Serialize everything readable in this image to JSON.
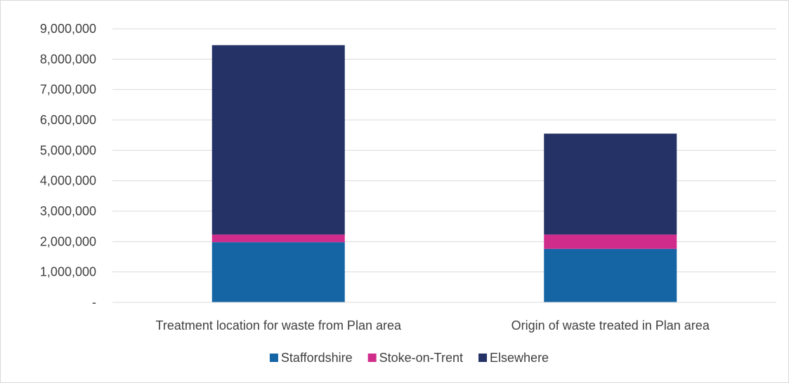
{
  "chart_data": {
    "type": "bar",
    "stacked": true,
    "title": "",
    "xlabel": "",
    "ylabel": "",
    "categories": [
      "Treatment location for waste from Plan area",
      "Origin of waste treated in Plan area"
    ],
    "series": [
      {
        "name": "Staffordshire",
        "values": [
          1980000,
          1760000
        ],
        "color": "#1565a5"
      },
      {
        "name": "Stoke-on-Trent",
        "values": [
          250000,
          470000
        ],
        "color": "#cf2c8c"
      },
      {
        "name": "Elsewhere",
        "values": [
          6230000,
          3320000
        ],
        "color": "#243265"
      }
    ],
    "ylim": [
      0,
      9000000
    ],
    "yticks": [
      0,
      1000000,
      2000000,
      3000000,
      4000000,
      5000000,
      6000000,
      7000000,
      8000000,
      9000000
    ],
    "ytick_labels": [
      "-",
      "1,000,000",
      "2,000,000",
      "3,000,000",
      "4,000,000",
      "5,000,000",
      "6,000,000",
      "7,000,000",
      "8,000,000",
      "9,000,000"
    ],
    "grid": true,
    "legend_position": "bottom"
  }
}
